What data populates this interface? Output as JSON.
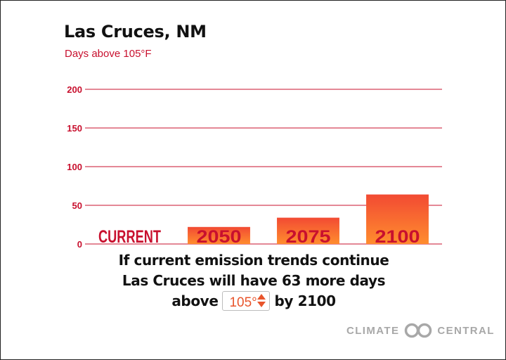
{
  "title": "Las Cruces, NM",
  "subtitle": "Days above 105°F",
  "chart_data": {
    "type": "bar",
    "title": "Las Cruces, NM",
    "subtitle": "Days above 105°F",
    "xlabel": "",
    "ylabel": "",
    "categories": [
      "CURRENT",
      "2050",
      "2075",
      "2100"
    ],
    "values": [
      0,
      22,
      34,
      64
    ],
    "yticks": [
      0,
      50,
      100,
      150,
      200
    ],
    "ylim": [
      0,
      200
    ],
    "grid": true,
    "bar_gradient": [
      "#f24a33",
      "#ff8d2e"
    ],
    "label_color": "#c8102e",
    "grid_color": "#c8102e"
  },
  "message": {
    "line1": "If current emission trends continue",
    "line2_prefix": "Las Cruces will have",
    "days_more": "63",
    "line2_suffix": "more days",
    "line3_prefix": "above",
    "line3_suffix": "by 2100"
  },
  "threshold_select": {
    "value": "105°"
  },
  "brand": {
    "left": "CLIMATE",
    "right": "CENTRAL"
  },
  "colors": {
    "accent_red": "#c8102e",
    "accent_orange": "#e8552c",
    "brand_gray": "#a8a8a8"
  }
}
